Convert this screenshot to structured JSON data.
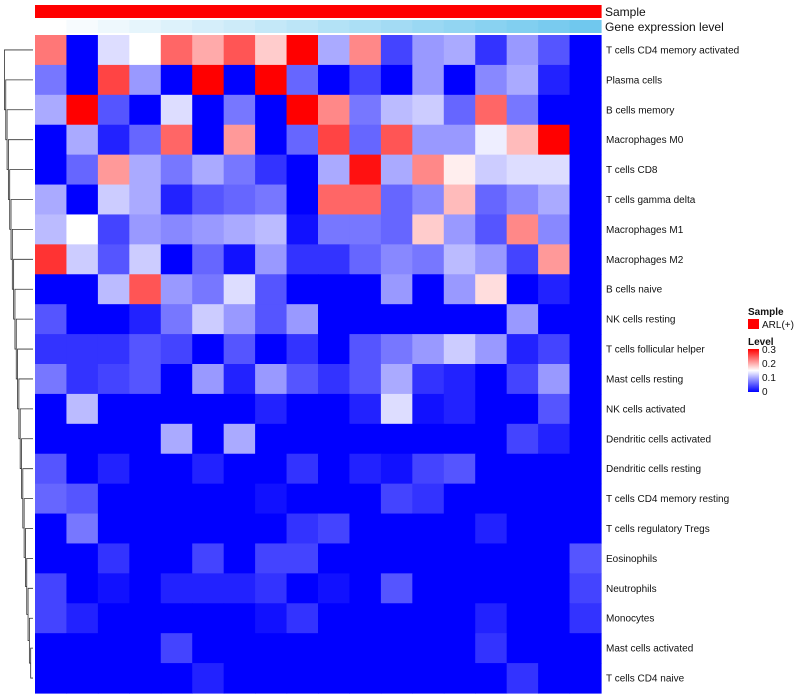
{
  "chart_data": {
    "type": "heatmap",
    "title": "",
    "annotation_tracks": [
      {
        "label": "Sample",
        "colors": [
          "#ff0000",
          "#ff0000",
          "#ff0000",
          "#ff0000",
          "#ff0000",
          "#ff0000",
          "#ff0000",
          "#ff0000",
          "#ff0000",
          "#ff0000",
          "#ff0000",
          "#ff0000",
          "#ff0000",
          "#ff0000",
          "#ff0000",
          "#ff0000",
          "#ff0000",
          "#ff0000"
        ]
      },
      {
        "label": "Gene expression level",
        "colors": [
          "#ffffff",
          "#f7fbfe",
          "#eef8fd",
          "#e6f5fc",
          "#ddf2fb",
          "#d5eefa",
          "#cdebf9",
          "#c4e8f8",
          "#bce5f7",
          "#b3e2f6",
          "#abdff5",
          "#a3dbf4",
          "#9ad8f3",
          "#92d5f2",
          "#89d2f1",
          "#81cff0",
          "#79cbef",
          "#70c8ee"
        ]
      }
    ],
    "rows": [
      "T cells CD4 memory activated",
      "Plasma cells",
      "B cells memory",
      "Macrophages M0",
      "T cells CD8",
      "T cells gamma delta",
      "Macrophages M1",
      "Macrophages M2",
      "B cells naive",
      "NK cells resting",
      "T cells follicular helper",
      "Mast cells resting",
      "NK cells activated",
      "Dendritic cells activated",
      "Dendritic cells resting",
      "T cells CD4 memory resting",
      "T cells regulatory  Tregs",
      "Eosinophils",
      "Neutrophils",
      "Monocytes",
      "Mast cells activated",
      "T cells CD4 naive"
    ],
    "n_columns": 18,
    "color_scale": {
      "min": 0,
      "mid": 0.15,
      "max": 0.3,
      "low_color": "#0000ff",
      "mid_color": "#ffffff",
      "high_color": "#ff0000"
    },
    "values": [
      [
        0.23,
        0.0,
        0.13,
        0.15,
        0.24,
        0.2,
        0.25,
        0.18,
        0.3,
        0.1,
        0.22,
        0.04,
        0.09,
        0.1,
        0.03,
        0.09,
        0.05,
        0.0
      ],
      [
        0.07,
        0.0,
        0.26,
        0.09,
        0.0,
        0.3,
        0.0,
        0.3,
        0.06,
        0.0,
        0.04,
        0.0,
        0.09,
        0.0,
        0.08,
        0.1,
        0.02,
        0.0
      ],
      [
        0.1,
        0.3,
        0.05,
        0.0,
        0.13,
        0.0,
        0.07,
        0.0,
        0.3,
        0.22,
        0.07,
        0.11,
        0.12,
        0.06,
        0.24,
        0.07,
        0.0,
        0.0
      ],
      [
        0.0,
        0.1,
        0.02,
        0.06,
        0.24,
        0.0,
        0.21,
        0.0,
        0.06,
        0.26,
        0.06,
        0.25,
        0.09,
        0.09,
        0.14,
        0.19,
        0.3,
        0.0
      ],
      [
        0.0,
        0.06,
        0.21,
        0.1,
        0.07,
        0.1,
        0.07,
        0.03,
        0.0,
        0.1,
        0.29,
        0.1,
        0.22,
        0.16,
        0.12,
        0.13,
        0.13,
        0.0
      ],
      [
        0.1,
        0.0,
        0.12,
        0.1,
        0.02,
        0.05,
        0.06,
        0.07,
        0.0,
        0.24,
        0.24,
        0.06,
        0.08,
        0.19,
        0.06,
        0.08,
        0.1,
        0.0
      ],
      [
        0.11,
        0.15,
        0.04,
        0.09,
        0.08,
        0.09,
        0.1,
        0.11,
        0.01,
        0.07,
        0.07,
        0.06,
        0.18,
        0.09,
        0.05,
        0.22,
        0.08,
        0.0
      ],
      [
        0.27,
        0.12,
        0.05,
        0.12,
        0.0,
        0.06,
        0.01,
        0.09,
        0.03,
        0.03,
        0.06,
        0.08,
        0.07,
        0.11,
        0.09,
        0.04,
        0.21,
        0.0
      ],
      [
        0.0,
        0.0,
        0.11,
        0.25,
        0.09,
        0.07,
        0.13,
        0.05,
        0.0,
        0.0,
        0.0,
        0.09,
        0.0,
        0.09,
        0.17,
        0.0,
        0.02,
        0.0
      ],
      [
        0.05,
        0.0,
        0.0,
        0.02,
        0.07,
        0.12,
        0.09,
        0.05,
        0.09,
        0.0,
        0.0,
        0.0,
        0.0,
        0.0,
        0.0,
        0.09,
        0.0,
        0.0
      ],
      [
        0.03,
        0.03,
        0.03,
        0.05,
        0.04,
        0.0,
        0.05,
        0.0,
        0.03,
        0.0,
        0.05,
        0.07,
        0.09,
        0.12,
        0.09,
        0.02,
        0.04,
        0.0
      ],
      [
        0.07,
        0.03,
        0.04,
        0.05,
        0.0,
        0.09,
        0.02,
        0.09,
        0.05,
        0.03,
        0.05,
        0.1,
        0.03,
        0.02,
        0.0,
        0.04,
        0.09,
        0.0
      ],
      [
        0.0,
        0.11,
        0.0,
        0.0,
        0.0,
        0.0,
        0.0,
        0.02,
        0.0,
        0.0,
        0.02,
        0.13,
        0.01,
        0.02,
        0.0,
        0.0,
        0.05,
        0.0
      ],
      [
        0.0,
        0.0,
        0.0,
        0.0,
        0.1,
        0.0,
        0.1,
        0.0,
        0.0,
        0.0,
        0.0,
        0.0,
        0.0,
        0.0,
        0.0,
        0.04,
        0.02,
        0.0
      ],
      [
        0.05,
        0.0,
        0.02,
        0.0,
        0.0,
        0.02,
        0.0,
        0.0,
        0.03,
        0.0,
        0.02,
        0.01,
        0.04,
        0.05,
        0.0,
        0.0,
        0.0,
        0.0
      ],
      [
        0.06,
        0.05,
        0.0,
        0.0,
        0.0,
        0.0,
        0.0,
        0.01,
        0.0,
        0.0,
        0.0,
        0.04,
        0.03,
        0.0,
        0.0,
        0.0,
        0.0,
        0.0
      ],
      [
        0.0,
        0.07,
        0.0,
        0.0,
        0.0,
        0.0,
        0.0,
        0.0,
        0.03,
        0.04,
        0.0,
        0.0,
        0.0,
        0.0,
        0.02,
        0.0,
        0.0,
        0.0
      ],
      [
        0.0,
        0.0,
        0.03,
        0.0,
        0.0,
        0.04,
        0.0,
        0.04,
        0.04,
        0.0,
        0.0,
        0.0,
        0.0,
        0.0,
        0.0,
        0.0,
        0.0,
        0.05
      ],
      [
        0.04,
        0.0,
        0.01,
        0.0,
        0.02,
        0.02,
        0.02,
        0.03,
        0.0,
        0.01,
        0.0,
        0.05,
        0.0,
        0.0,
        0.0,
        0.0,
        0.0,
        0.04
      ],
      [
        0.04,
        0.02,
        0.0,
        0.0,
        0.0,
        0.0,
        0.0,
        0.01,
        0.03,
        0.0,
        0.0,
        0.0,
        0.0,
        0.0,
        0.02,
        0.0,
        0.0,
        0.03
      ],
      [
        0.0,
        0.0,
        0.0,
        0.0,
        0.04,
        0.0,
        0.0,
        0.0,
        0.0,
        0.0,
        0.0,
        0.0,
        0.0,
        0.0,
        0.03,
        0.0,
        0.0,
        0.0
      ],
      [
        0.0,
        0.0,
        0.0,
        0.0,
        0.0,
        0.02,
        0.0,
        0.0,
        0.0,
        0.0,
        0.0,
        0.0,
        0.0,
        0.0,
        0.0,
        0.03,
        0.0,
        0.0
      ]
    ],
    "row_dendrogram": true,
    "legend": {
      "sample_title": "Sample",
      "sample_entry": "ARL(+)",
      "sample_color": "#ff0000",
      "level_title": "Level",
      "level_ticks": [
        "0.3",
        "0.2",
        "0.1",
        "0"
      ]
    }
  }
}
